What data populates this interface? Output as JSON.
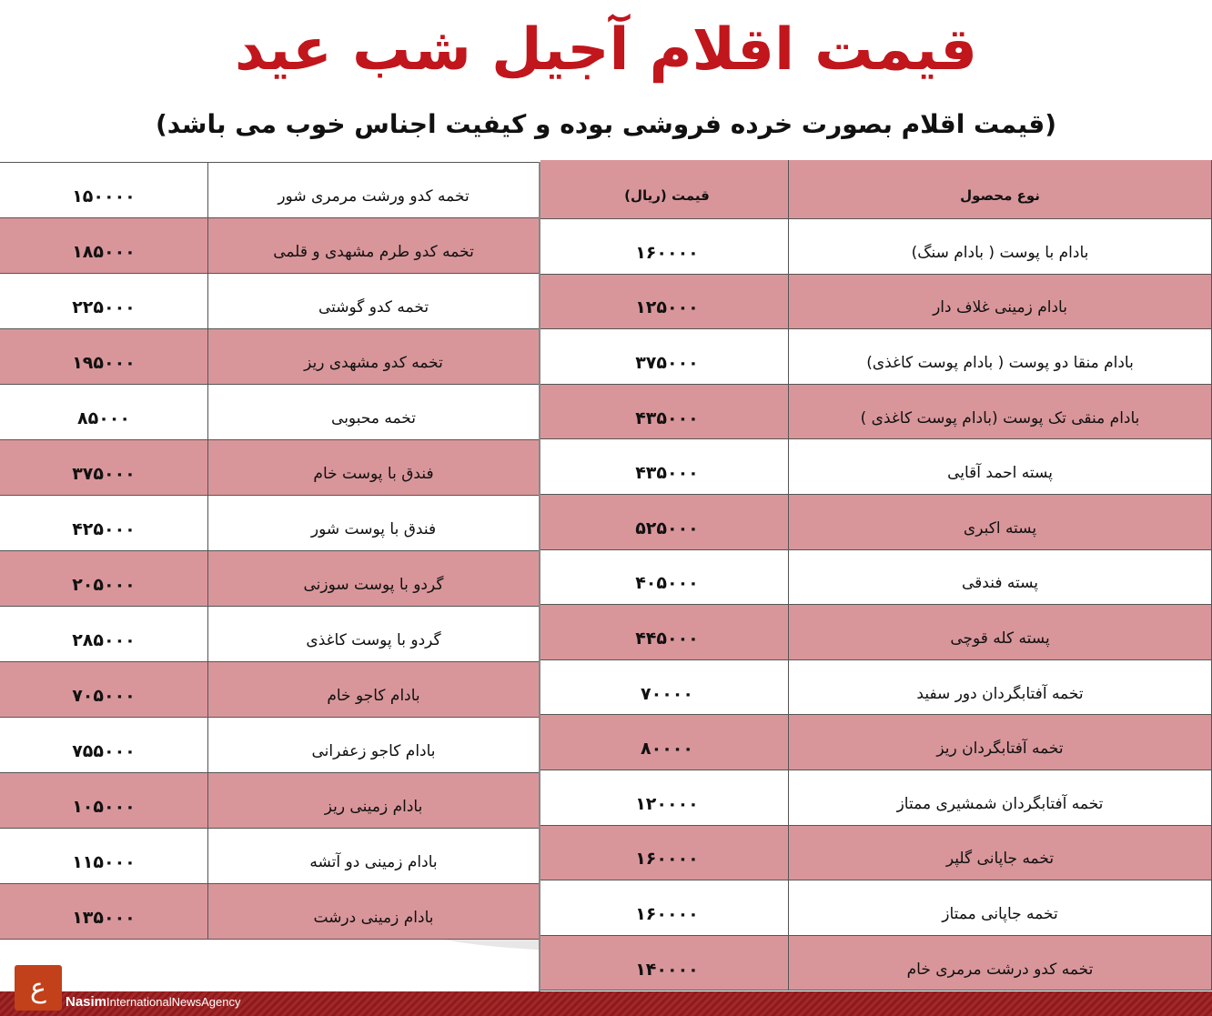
{
  "title": "قیمت اقلام آجیل شب عید",
  "subtitle": "(قیمت اقلام بصورت خرده فروشی بوده و کیفیت اجناس خوب می باشد)",
  "colors": {
    "title": "#c0161c",
    "pink_row": "#d9969a",
    "footer": "#8e1b1b",
    "logo": "#c2401a"
  },
  "right_table": {
    "headers": {
      "product": "نوع محصول",
      "price": "قیمت (ریال)"
    },
    "rows": [
      {
        "name": "بادام با پوست ( بادام سنگ)",
        "price": "۱۶۰۰۰۰"
      },
      {
        "name": "بادام زمینی غلاف دار",
        "price": "۱۲۵۰۰۰"
      },
      {
        "name": "بادام منقا دو پوست ( بادام پوست کاغذی)",
        "price": "۳۷۵۰۰۰"
      },
      {
        "name": "بادام منقی تک پوست (بادام پوست کاغذی )",
        "price": "۴۳۵۰۰۰"
      },
      {
        "name": "پسته احمد آقایی",
        "price": "۴۳۵۰۰۰"
      },
      {
        "name": "پسته اکبری",
        "price": "۵۲۵۰۰۰"
      },
      {
        "name": "پسته فندقی",
        "price": "۴۰۵۰۰۰"
      },
      {
        "name": "پسته کله قوچی",
        "price": "۴۴۵۰۰۰"
      },
      {
        "name": "تخمه آفتابگردان دور سفید",
        "price": "۷۰۰۰۰"
      },
      {
        "name": "تخمه آفتابگردان ریز",
        "price": "۸۰۰۰۰"
      },
      {
        "name": "تخمه آفتابگردان شمشیری ممتاز",
        "price": "۱۲۰۰۰۰"
      },
      {
        "name": "تخمه جاپانی گلپر",
        "price": "۱۶۰۰۰۰"
      },
      {
        "name": "تخمه جاپانی ممتاز",
        "price": "۱۶۰۰۰۰"
      },
      {
        "name": "تخمه کدو درشت مرمری خام",
        "price": "۱۴۰۰۰۰"
      }
    ]
  },
  "left_table": {
    "rows": [
      {
        "name": "تخمه کدو ورشت مرمری شور",
        "price": "۱۵۰۰۰۰"
      },
      {
        "name": "تخمه کدو طرم مشهدی و قلمی",
        "price": "۱۸۵۰۰۰"
      },
      {
        "name": "تخمه کدو گوشتی",
        "price": "۲۲۵۰۰۰"
      },
      {
        "name": "تخمه کدو مشهدی ریز",
        "price": "۱۹۵۰۰۰"
      },
      {
        "name": "تخمه محبوبی",
        "price": "۸۵۰۰۰"
      },
      {
        "name": "فندق با پوست خام",
        "price": "۳۷۵۰۰۰"
      },
      {
        "name": "فندق با پوست شور",
        "price": "۴۲۵۰۰۰"
      },
      {
        "name": "گردو با پوست سوزنی",
        "price": "۲۰۵۰۰۰"
      },
      {
        "name": "گردو با پوست کاغذی",
        "price": "۲۸۵۰۰۰"
      },
      {
        "name": "بادام کاجو خام",
        "price": "۷۰۵۰۰۰"
      },
      {
        "name": "بادام کاجو زعفرانی",
        "price": "۷۵۵۰۰۰"
      },
      {
        "name": "بادام زمینی ریز",
        "price": "۱۰۵۰۰۰"
      },
      {
        "name": "بادام زمینی دو آتشه",
        "price": "۱۱۵۰۰۰"
      },
      {
        "name": "بادام زمینی درشت",
        "price": "۱۳۵۰۰۰"
      }
    ]
  },
  "footer": {
    "brand_bold": "Nasim",
    "brand_rest": "InternationalNewsAgency"
  }
}
